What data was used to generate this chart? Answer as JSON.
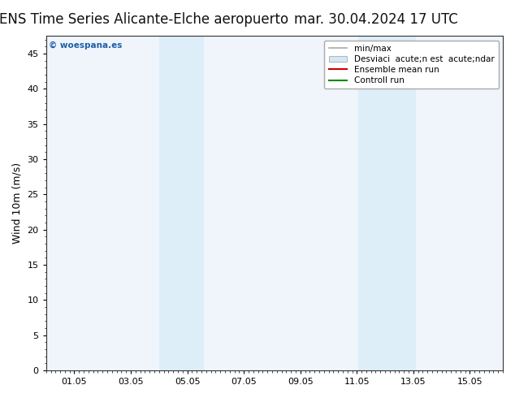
{
  "title_left": "ENS Time Series Alicante-Elche aeropuerto",
  "title_right": "mar. 30.04.2024 17 UTC",
  "ylabel": "Wind 10m (m/s)",
  "ylim": [
    0,
    47.5
  ],
  "yticks": [
    0,
    5,
    10,
    15,
    20,
    25,
    30,
    35,
    40,
    45
  ],
  "xlim_start": 0,
  "xlim_end": 16,
  "x_tick_labels": [
    "01.05",
    "03.05",
    "05.05",
    "07.05",
    "09.05",
    "11.05",
    "13.05",
    "15.05"
  ],
  "x_tick_positions": [
    1,
    3,
    5,
    7,
    9,
    11,
    13,
    15
  ],
  "shaded_bands": [
    {
      "x_start": 4.0,
      "x_end": 5.55,
      "color": "#ddeef8"
    },
    {
      "x_start": 11.05,
      "x_end": 13.05,
      "color": "#ddeef8"
    }
  ],
  "watermark": "© woespana.es",
  "watermark_color": "#1a5fa8",
  "legend_label_minmax": "min/max",
  "legend_label_std": "Desviaci  acute;n est  acute;ndar",
  "legend_label_ens": "Ensemble mean run",
  "legend_label_ctrl": "Controll run",
  "legend_minmax_color": "#aaaaaa",
  "legend_std_color": "#d8e8f0",
  "legend_ens_color": "#cc0000",
  "legend_ctrl_color": "#008800",
  "background_color": "#ffffff",
  "plot_bg_color": "#f0f5fc",
  "title_fontsize": 12,
  "label_fontsize": 9,
  "tick_fontsize": 8,
  "legend_fontsize": 7.5
}
